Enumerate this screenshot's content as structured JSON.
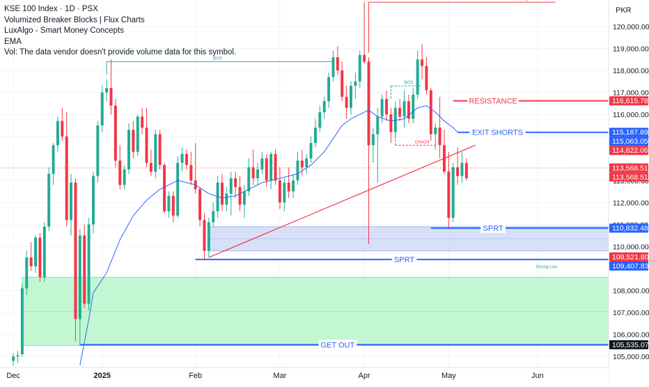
{
  "legend": {
    "title": "KSE 100 Index · 1D · PSX",
    "line1": "Volumized Breaker Blocks | Flux Charts",
    "line2": "LuxAlgo - Smart Money Concepts",
    "line3": "EMA",
    "line4": "Vol: The data vendor doesn't provide volume data for this symbol."
  },
  "currency": "PKR",
  "colors": {
    "up": "#22ab94",
    "down": "#f23645",
    "blue": "#2962ff",
    "ema": "#2962ff"
  },
  "chart_data": {
    "type": "candlestick",
    "symbol": "KSE 100 Index",
    "interval": "1D",
    "exchange": "PSX",
    "y_ticks": [
      105000,
      106000,
      107000,
      108000,
      110000,
      111000,
      112000,
      113000,
      115000,
      116000,
      117000,
      118000,
      119000,
      120000
    ],
    "y_tick_labels": [
      "105,000.00",
      "106,000.00",
      "107,000.00",
      "108,000.00",
      "110,000.00",
      "111,000.00",
      "112,000.00",
      "113,000.00",
      "115,000.00",
      "116,000.00",
      "117,000.00",
      "118,000.00",
      "119,000.00",
      "120,000.00"
    ],
    "ylim": [
      104500,
      121200
    ],
    "x_labels": [
      {
        "label": "Dec",
        "bar": 0,
        "bold": false
      },
      {
        "label": "2025",
        "bar": 20,
        "bold": true
      },
      {
        "label": "Feb",
        "bar": 41,
        "bold": false
      },
      {
        "label": "Mar",
        "bar": 60,
        "bold": false
      },
      {
        "label": "Apr",
        "bar": 79,
        "bold": false
      },
      {
        "label": "May",
        "bar": 98,
        "bold": false
      },
      {
        "label": "Jun",
        "bar": 118,
        "bold": false
      }
    ],
    "bar_range": [
      -3,
      134
    ],
    "candles": [
      {
        "o": 104800,
        "h": 105150,
        "l": 104600,
        "c": 105000
      },
      {
        "o": 105000,
        "h": 105250,
        "l": 104700,
        "c": 105050
      },
      {
        "o": 105100,
        "h": 108300,
        "l": 105000,
        "c": 108100
      },
      {
        "o": 108100,
        "h": 109800,
        "l": 107800,
        "c": 109500
      },
      {
        "o": 109500,
        "h": 110200,
        "l": 108900,
        "c": 109100
      },
      {
        "o": 109100,
        "h": 110500,
        "l": 108800,
        "c": 110400
      },
      {
        "o": 110400,
        "h": 110600,
        "l": 108400,
        "c": 108600
      },
      {
        "o": 108600,
        "h": 111100,
        "l": 108400,
        "c": 110900
      },
      {
        "o": 110900,
        "h": 113600,
        "l": 110700,
        "c": 113300
      },
      {
        "o": 113300,
        "h": 114700,
        "l": 112800,
        "c": 114600
      },
      {
        "o": 114600,
        "h": 115900,
        "l": 114300,
        "c": 115700
      },
      {
        "o": 115700,
        "h": 116300,
        "l": 114800,
        "c": 115000
      },
      {
        "o": 115000,
        "h": 116100,
        "l": 110900,
        "c": 111200
      },
      {
        "o": 111200,
        "h": 113300,
        "l": 110500,
        "c": 112900
      },
      {
        "o": 112900,
        "h": 113100,
        "l": 105700,
        "c": 106700
      },
      {
        "o": 106700,
        "h": 110800,
        "l": 105500,
        "c": 110500
      },
      {
        "o": 110500,
        "h": 111000,
        "l": 107200,
        "c": 107400
      },
      {
        "o": 107400,
        "h": 111300,
        "l": 107100,
        "c": 111000
      },
      {
        "o": 111000,
        "h": 113400,
        "l": 110600,
        "c": 113200
      },
      {
        "o": 113200,
        "h": 115700,
        "l": 112900,
        "c": 115500
      },
      {
        "o": 115500,
        "h": 117300,
        "l": 115200,
        "c": 117000
      },
      {
        "o": 117000,
        "h": 117600,
        "l": 116600,
        "c": 117200
      },
      {
        "o": 117200,
        "h": 118500,
        "l": 116000,
        "c": 116400
      },
      {
        "o": 116400,
        "h": 116700,
        "l": 113600,
        "c": 113900
      },
      {
        "o": 113900,
        "h": 114600,
        "l": 112600,
        "c": 112800
      },
      {
        "o": 112800,
        "h": 113700,
        "l": 112600,
        "c": 113500
      },
      {
        "o": 113500,
        "h": 115600,
        "l": 113300,
        "c": 115300
      },
      {
        "o": 115300,
        "h": 115700,
        "l": 114000,
        "c": 114300
      },
      {
        "o": 114300,
        "h": 116000,
        "l": 114100,
        "c": 115900
      },
      {
        "o": 115900,
        "h": 116300,
        "l": 115100,
        "c": 115400
      },
      {
        "o": 115400,
        "h": 116300,
        "l": 113600,
        "c": 113800
      },
      {
        "o": 113800,
        "h": 114400,
        "l": 113200,
        "c": 113400
      },
      {
        "o": 113400,
        "h": 115300,
        "l": 113100,
        "c": 115100
      },
      {
        "o": 115100,
        "h": 115300,
        "l": 113500,
        "c": 113700
      },
      {
        "o": 113700,
        "h": 113800,
        "l": 111500,
        "c": 111600
      },
      {
        "o": 111600,
        "h": 112500,
        "l": 111300,
        "c": 112300
      },
      {
        "o": 112300,
        "h": 112500,
        "l": 111100,
        "c": 111400
      },
      {
        "o": 111400,
        "h": 114100,
        "l": 111300,
        "c": 113800
      },
      {
        "o": 113800,
        "h": 114500,
        "l": 113400,
        "c": 114200
      },
      {
        "o": 114200,
        "h": 114400,
        "l": 113500,
        "c": 113700
      },
      {
        "o": 113700,
        "h": 114300,
        "l": 112800,
        "c": 113000
      },
      {
        "o": 113000,
        "h": 114700,
        "l": 112400,
        "c": 112600
      },
      {
        "o": 112600,
        "h": 112700,
        "l": 110900,
        "c": 111200
      },
      {
        "o": 111200,
        "h": 111500,
        "l": 109400,
        "c": 109800
      },
      {
        "o": 109800,
        "h": 111300,
        "l": 109500,
        "c": 111100
      },
      {
        "o": 111100,
        "h": 112000,
        "l": 110900,
        "c": 111600
      },
      {
        "o": 111600,
        "h": 113200,
        "l": 111300,
        "c": 112900
      },
      {
        "o": 112900,
        "h": 113300,
        "l": 111600,
        "c": 111900
      },
      {
        "o": 111900,
        "h": 112700,
        "l": 111600,
        "c": 112400
      },
      {
        "o": 112400,
        "h": 113400,
        "l": 111400,
        "c": 113100
      },
      {
        "o": 113100,
        "h": 113400,
        "l": 112200,
        "c": 112700
      },
      {
        "o": 112700,
        "h": 113200,
        "l": 111600,
        "c": 111900
      },
      {
        "o": 111900,
        "h": 112800,
        "l": 111300,
        "c": 112500
      },
      {
        "o": 112500,
        "h": 114000,
        "l": 112300,
        "c": 113600
      },
      {
        "o": 113600,
        "h": 114400,
        "l": 112800,
        "c": 113100
      },
      {
        "o": 113100,
        "h": 113800,
        "l": 112800,
        "c": 113500
      },
      {
        "o": 113500,
        "h": 114300,
        "l": 113300,
        "c": 114000
      },
      {
        "o": 114000,
        "h": 114200,
        "l": 112700,
        "c": 113000
      },
      {
        "o": 113000,
        "h": 114300,
        "l": 112600,
        "c": 114200
      },
      {
        "o": 114200,
        "h": 114400,
        "l": 112800,
        "c": 113000
      },
      {
        "o": 113000,
        "h": 113600,
        "l": 111700,
        "c": 112000
      },
      {
        "o": 112000,
        "h": 113100,
        "l": 111600,
        "c": 112900
      },
      {
        "o": 112900,
        "h": 113600,
        "l": 112200,
        "c": 112500
      },
      {
        "o": 112500,
        "h": 113300,
        "l": 112200,
        "c": 113000
      },
      {
        "o": 113000,
        "h": 114300,
        "l": 112800,
        "c": 113900
      },
      {
        "o": 113900,
        "h": 114400,
        "l": 113200,
        "c": 113600
      },
      {
        "o": 113600,
        "h": 114200,
        "l": 113300,
        "c": 114000
      },
      {
        "o": 114000,
        "h": 115000,
        "l": 113800,
        "c": 114700
      },
      {
        "o": 114700,
        "h": 115800,
        "l": 114500,
        "c": 115400
      },
      {
        "o": 115400,
        "h": 116400,
        "l": 115200,
        "c": 116100
      },
      {
        "o": 116100,
        "h": 116800,
        "l": 115800,
        "c": 116600
      },
      {
        "o": 116600,
        "h": 117900,
        "l": 116300,
        "c": 117700
      },
      {
        "o": 117700,
        "h": 118900,
        "l": 117500,
        "c": 118600
      },
      {
        "o": 118600,
        "h": 119100,
        "l": 117800,
        "c": 118000
      },
      {
        "o": 118000,
        "h": 118400,
        "l": 116600,
        "c": 116800
      },
      {
        "o": 116800,
        "h": 117300,
        "l": 115800,
        "c": 116300
      },
      {
        "o": 116300,
        "h": 117500,
        "l": 116000,
        "c": 117300
      },
      {
        "o": 117300,
        "h": 117900,
        "l": 116700,
        "c": 117500
      },
      {
        "o": 117500,
        "h": 118900,
        "l": 117200,
        "c": 118700
      },
      {
        "o": 118700,
        "h": 121100,
        "l": 118300,
        "c": 118400
      },
      {
        "o": 118400,
        "h": 118600,
        "l": 110100,
        "c": 114600
      },
      {
        "o": 114600,
        "h": 115400,
        "l": 113800,
        "c": 115100
      },
      {
        "o": 115100,
        "h": 116300,
        "l": 112900,
        "c": 115900
      },
      {
        "o": 115900,
        "h": 116900,
        "l": 115600,
        "c": 116700
      },
      {
        "o": 116700,
        "h": 117100,
        "l": 115700,
        "c": 116000
      },
      {
        "o": 116000,
        "h": 116300,
        "l": 114700,
        "c": 115200
      },
      {
        "o": 115200,
        "h": 116600,
        "l": 114900,
        "c": 116300
      },
      {
        "o": 116300,
        "h": 116700,
        "l": 115700,
        "c": 115900
      },
      {
        "o": 115900,
        "h": 117100,
        "l": 115400,
        "c": 116600
      },
      {
        "o": 116600,
        "h": 116900,
        "l": 115600,
        "c": 115800
      },
      {
        "o": 115800,
        "h": 117200,
        "l": 115600,
        "c": 116900
      },
      {
        "o": 116900,
        "h": 118900,
        "l": 116700,
        "c": 118500
      },
      {
        "o": 118500,
        "h": 119200,
        "l": 117600,
        "c": 118200
      },
      {
        "o": 118200,
        "h": 118600,
        "l": 116900,
        "c": 117100
      },
      {
        "o": 117100,
        "h": 117200,
        "l": 114800,
        "c": 115100
      },
      {
        "o": 115100,
        "h": 115600,
        "l": 114400,
        "c": 115400
      },
      {
        "o": 115400,
        "h": 116800,
        "l": 114000,
        "c": 114600
      },
      {
        "o": 114600,
        "h": 115300,
        "l": 113300,
        "c": 113400
      },
      {
        "o": 113400,
        "h": 114300,
        "l": 110800,
        "c": 111300
      },
      {
        "o": 111300,
        "h": 113800,
        "l": 111100,
        "c": 113600
      },
      {
        "o": 113600,
        "h": 114500,
        "l": 112800,
        "c": 113200
      },
      {
        "o": 113200,
        "h": 114300,
        "l": 112900,
        "c": 113800
      },
      {
        "o": 113800,
        "h": 114000,
        "l": 113000,
        "c": 113100
      }
    ],
    "ema": [
      {
        "bar": 15,
        "v": 104600
      },
      {
        "bar": 17,
        "v": 106700
      },
      {
        "bar": 18,
        "v": 107900
      },
      {
        "bar": 21,
        "v": 108800
      },
      {
        "bar": 24,
        "v": 110300
      },
      {
        "bar": 27,
        "v": 111400
      },
      {
        "bar": 30,
        "v": 112100
      },
      {
        "bar": 33,
        "v": 112600
      },
      {
        "bar": 37,
        "v": 113000
      },
      {
        "bar": 41,
        "v": 112800
      },
      {
        "bar": 44,
        "v": 112400
      },
      {
        "bar": 47,
        "v": 112200
      },
      {
        "bar": 50,
        "v": 112300
      },
      {
        "bar": 53,
        "v": 112600
      },
      {
        "bar": 56,
        "v": 112900
      },
      {
        "bar": 60,
        "v": 113100
      },
      {
        "bar": 64,
        "v": 113300
      },
      {
        "bar": 67,
        "v": 113700
      },
      {
        "bar": 70,
        "v": 114300
      },
      {
        "bar": 72,
        "v": 114900
      },
      {
        "bar": 74,
        "v": 115500
      },
      {
        "bar": 76,
        "v": 115800
      },
      {
        "bar": 78,
        "v": 116000
      },
      {
        "bar": 80,
        "v": 116200
      },
      {
        "bar": 82,
        "v": 115900
      },
      {
        "bar": 85,
        "v": 115700
      },
      {
        "bar": 88,
        "v": 115800
      },
      {
        "bar": 91,
        "v": 116300
      },
      {
        "bar": 93,
        "v": 116400
      },
      {
        "bar": 95,
        "v": 116100
      },
      {
        "bar": 97,
        "v": 115700
      },
      {
        "bar": 99,
        "v": 115400
      },
      {
        "bar": 100,
        "v": 115200
      }
    ],
    "zones": [
      {
        "bar_from": 2,
        "bar_to": 134,
        "y1": 108600,
        "y2": 105500,
        "color": "#b9f6ca",
        "border": "#69f0ae"
      },
      {
        "bar_from": 44,
        "bar_to": 134,
        "y1": 110900,
        "y2": 109800,
        "color": "#d1dbf7",
        "border": "#9fb3ee"
      }
    ],
    "levels": [
      {
        "label": "RESISTANCE",
        "value": 116615.78,
        "color": "#f23645",
        "bar_from": 99,
        "bar_to": 134,
        "label_bar": 108
      },
      {
        "label": "EXIT SHORTS",
        "value": 115187.89,
        "color": "#2962ff",
        "bar_from": 100,
        "bar_to": 134,
        "label_bar": 109
      },
      {
        "label": "SPRT",
        "value": 110832.48,
        "color": "#2962ff",
        "bar_from": 94,
        "bar_to": 134,
        "label_bar": 108
      },
      {
        "label": "SPRT",
        "value": 109407.83,
        "color": "#2962ff",
        "bar_from": 41,
        "bar_to": 134,
        "label_bar": 88
      },
      {
        "label": "GET OUT",
        "value": 105535.07,
        "color": "#2962ff",
        "bar_from": 15,
        "bar_to": 134,
        "label_bar": 73
      }
    ],
    "smc_lines": [
      {
        "label": "BOS",
        "bar_from": 21,
        "bar_to": 72,
        "value": 118400,
        "color": "#22ab94",
        "label_bar": 46,
        "dashed": false
      },
      {
        "label": "Weak High",
        "bar_from": 80,
        "bar_to": 122,
        "value": 121100,
        "color": "#f23645",
        "label_bar": 114,
        "dashed": false
      },
      {
        "label": "BOS",
        "bar_from": 85,
        "bar_to": 92,
        "value": 117300,
        "color": "#22ab94",
        "label_bar": 89,
        "dashed": true
      },
      {
        "label": "CHoCH",
        "bar_from": 86,
        "bar_to": 95,
        "value": 114600,
        "color": "#f23645",
        "label_bar": 92,
        "dashed": true
      },
      {
        "label": "Strong Low",
        "bar_from": 115,
        "bar_to": 125,
        "value": 109400,
        "color": "#22ab94",
        "label_bar": 120,
        "dashed": false,
        "label_only": true
      }
    ],
    "trendline": {
      "from": {
        "bar": 44,
        "v": 109500
      },
      "to": {
        "bar": 104,
        "v": 114600
      },
      "color": "#f23645"
    },
    "last_price_line": {
      "value": 113568.51,
      "color": "#f23645"
    },
    "price_tags": [
      {
        "value": 116615.78,
        "label": "116,615.78",
        "bg": "#f23645",
        "fg": "#ffffff"
      },
      {
        "value": 115187.89,
        "label": "115,187.89",
        "bg": "#2962ff",
        "fg": "#ffffff"
      },
      {
        "value": 115063.05,
        "label": "115,063.05",
        "bg": "#2962ff",
        "fg": "#ffffff"
      },
      {
        "value": 114622.06,
        "label": "114,622.06",
        "bg": "#f23645",
        "fg": "#ffffff"
      },
      {
        "value": 113568.51,
        "label": "113,568.51",
        "bg": "#f23645",
        "fg": "#ffffff"
      },
      {
        "value": 113568.51,
        "label": "113,568.51",
        "bg": "#f23645",
        "fg": "#ffffff"
      },
      {
        "value": 110832.48,
        "label": "110,832.48",
        "bg": "#2962ff",
        "fg": "#ffffff"
      },
      {
        "value": 109521.8,
        "label": "109,521.80",
        "bg": "#f23645",
        "fg": "#ffffff"
      },
      {
        "value": 109407.83,
        "label": "109,407.83",
        "bg": "#2962ff",
        "fg": "#ffffff"
      },
      {
        "value": 105535.07,
        "label": "105,535.07",
        "bg": "#131722",
        "fg": "#ffffff"
      }
    ]
  }
}
